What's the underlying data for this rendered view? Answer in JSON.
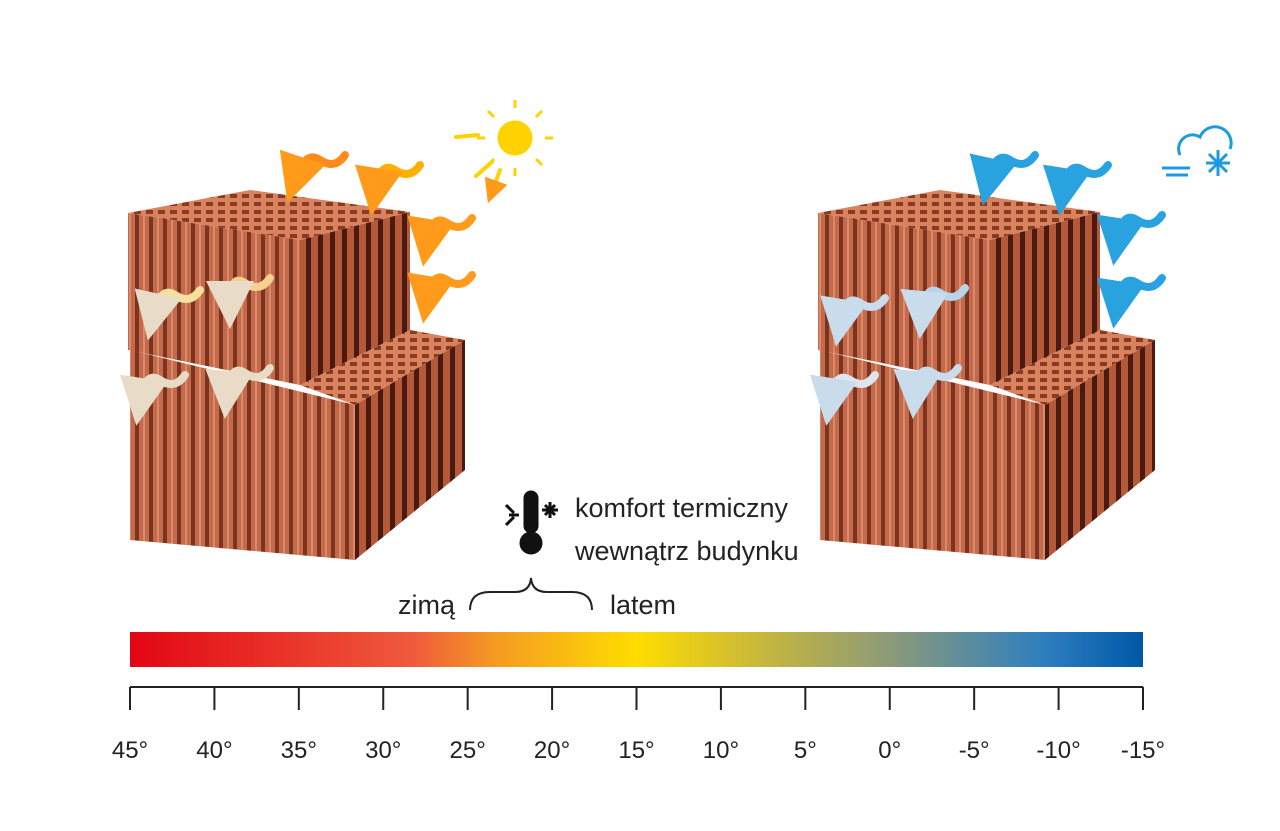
{
  "caption": {
    "line1": "komfort termiczny",
    "line2": "wewnątrz budynku"
  },
  "winter": "zimą",
  "summer": "latem",
  "scale": {
    "ticks": [
      "45°",
      "40°",
      "35°",
      "30°",
      "25°",
      "20°",
      "15°",
      "10°",
      "5°",
      "0°",
      "-5°",
      "-10°",
      "-15°"
    ]
  }
}
